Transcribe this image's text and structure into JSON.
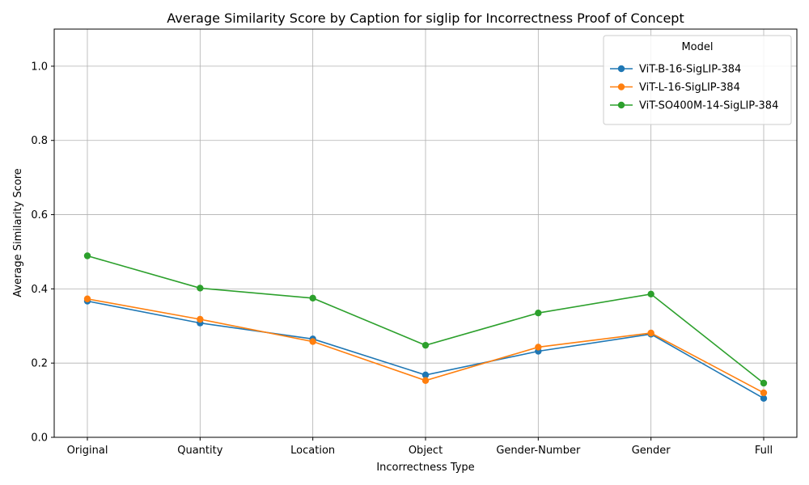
{
  "chart_data": {
    "type": "line",
    "title": "Average Similarity Score by Caption for siglip for Incorrectness Proof of Concept",
    "xlabel": "Incorrectness Type",
    "ylabel": "Average Similarity Score",
    "categories": [
      "Original",
      "Quantity",
      "Location",
      "Object",
      "Gender-Number",
      "Gender",
      "Full"
    ],
    "ylim": [
      0,
      1.1
    ],
    "yticks": [
      0.0,
      0.2,
      0.4,
      0.6,
      0.8,
      1.0
    ],
    "ytick_labels": [
      "0.0",
      "0.2",
      "0.4",
      "0.6",
      "0.8",
      "1.0"
    ],
    "grid": true,
    "legend": {
      "title": "Model",
      "placement": "top-right"
    },
    "series": [
      {
        "name": "ViT-B-16-SigLIP-384",
        "color": "#1f77b4",
        "values": [
          0.367,
          0.308,
          0.265,
          0.168,
          0.232,
          0.278,
          0.105
        ]
      },
      {
        "name": "ViT-L-16-SigLIP-384",
        "color": "#ff7f0e",
        "values": [
          0.373,
          0.318,
          0.258,
          0.153,
          0.243,
          0.281,
          0.12
        ]
      },
      {
        "name": "ViT-SO400M-14-SigLIP-384",
        "color": "#2ca02c",
        "values": [
          0.489,
          0.402,
          0.375,
          0.248,
          0.335,
          0.386,
          0.146
        ]
      }
    ]
  }
}
